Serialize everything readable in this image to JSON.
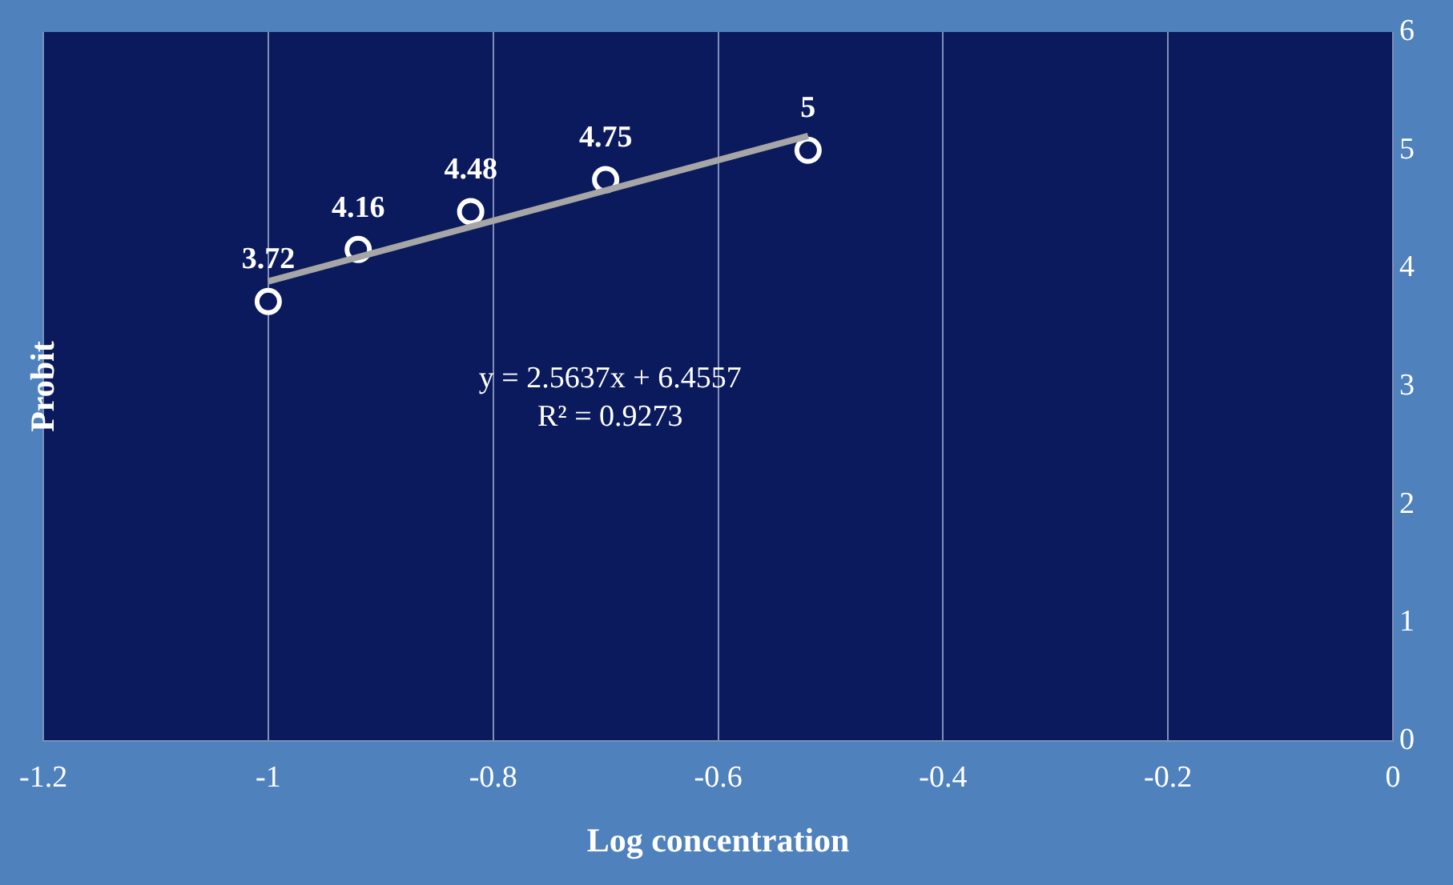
{
  "chart_data": {
    "type": "scatter",
    "xlabel": "Log concentration",
    "ylabel": "Probit",
    "annotations": [
      "y = 2.5637x + 6.4557",
      "R² = 0.9273"
    ],
    "xlim": [
      -1.2,
      0
    ],
    "xticks": [
      -1.2,
      -1,
      -0.8,
      -0.6,
      -0.4,
      -0.2,
      0
    ],
    "ylim": [
      0,
      6
    ],
    "yticks": [
      0,
      1,
      2,
      3,
      4,
      5,
      6
    ],
    "grid": "x",
    "legend": false,
    "series": [
      {
        "type": "line",
        "color": "#a6a6a6",
        "x": [
          -1,
          -0.52
        ],
        "values": [
          3.89,
          5.12
        ],
        "marker": "none",
        "line_style": "solid"
      },
      {
        "color": "#ffffff",
        "x": [
          -1,
          -0.92,
          -0.82,
          -0.7,
          -0.52
        ],
        "values": [
          3.72,
          4.16,
          4.48,
          4.75,
          5
        ],
        "value_labels": [
          "3.72",
          "4.16",
          "4.48",
          "4.75",
          "5"
        ],
        "marker": "circle"
      }
    ]
  }
}
